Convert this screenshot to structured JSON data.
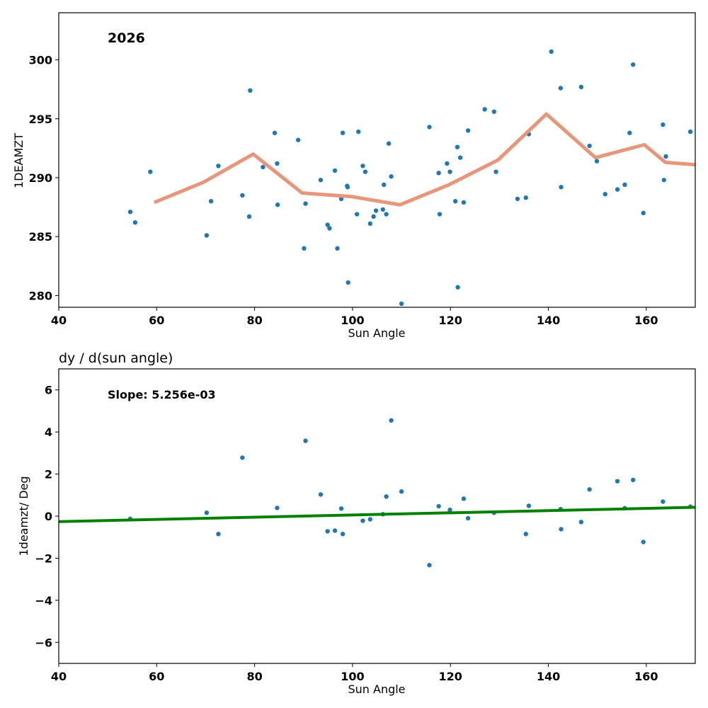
{
  "chart_data": [
    {
      "type": "scatter",
      "title": "",
      "annotation": "2026",
      "xlabel": "Sun Angle",
      "ylabel": "1DEAMZT",
      "xlim": [
        40,
        170
      ],
      "ylim": [
        279,
        304
      ],
      "xticks": [
        40,
        60,
        80,
        100,
        120,
        140,
        160
      ],
      "yticks": [
        280,
        285,
        290,
        295,
        300
      ],
      "grid": false,
      "colors": {
        "points": "#1f77b4",
        "line": "#e8967a"
      },
      "series": [
        {
          "name": "points",
          "kind": "scatter",
          "points": [
            [
              54.6,
              287.1
            ],
            [
              55.6,
              286.2
            ],
            [
              58.7,
              290.5
            ],
            [
              70.2,
              285.1
            ],
            [
              71.1,
              288.0
            ],
            [
              72.6,
              291.0
            ],
            [
              77.5,
              288.5
            ],
            [
              78.9,
              286.7
            ],
            [
              79.1,
              297.4
            ],
            [
              81.7,
              290.9
            ],
            [
              84.1,
              293.8
            ],
            [
              84.6,
              291.2
            ],
            [
              84.7,
              287.7
            ],
            [
              88.9,
              293.2
            ],
            [
              90.1,
              284.0
            ],
            [
              90.4,
              287.8
            ],
            [
              93.5,
              289.8
            ],
            [
              94.9,
              286.0
            ],
            [
              95.3,
              285.7
            ],
            [
              96.4,
              290.6
            ],
            [
              96.9,
              284.0
            ],
            [
              97.7,
              288.2
            ],
            [
              98.0,
              293.8
            ],
            [
              98.9,
              289.3
            ],
            [
              99.1,
              281.1
            ],
            [
              99.0,
              289.2
            ],
            [
              100.9,
              286.9
            ],
            [
              101.2,
              293.9
            ],
            [
              102.1,
              291.0
            ],
            [
              102.6,
              290.5
            ],
            [
              103.6,
              286.1
            ],
            [
              104.3,
              286.7
            ],
            [
              104.8,
              287.2
            ],
            [
              106.2,
              287.3
            ],
            [
              106.4,
              289.4
            ],
            [
              106.9,
              286.9
            ],
            [
              107.4,
              292.9
            ],
            [
              107.9,
              290.1
            ],
            [
              110.0,
              279.3
            ],
            [
              115.7,
              294.3
            ],
            [
              117.6,
              290.4
            ],
            [
              117.8,
              286.9
            ],
            [
              119.3,
              291.2
            ],
            [
              119.9,
              290.5
            ],
            [
              121.0,
              288.0
            ],
            [
              121.4,
              292.6
            ],
            [
              121.5,
              280.7
            ],
            [
              122.0,
              291.7
            ],
            [
              122.7,
              287.9
            ],
            [
              123.6,
              294.0
            ],
            [
              127.0,
              295.8
            ],
            [
              128.9,
              295.6
            ],
            [
              129.3,
              290.5
            ],
            [
              133.7,
              288.2
            ],
            [
              135.4,
              288.3
            ],
            [
              136.0,
              293.7
            ],
            [
              140.6,
              300.7
            ],
            [
              142.5,
              297.6
            ],
            [
              142.6,
              289.2
            ],
            [
              146.7,
              297.7
            ],
            [
              148.4,
              292.7
            ],
            [
              149.9,
              291.4
            ],
            [
              151.6,
              288.6
            ],
            [
              154.1,
              289.0
            ],
            [
              155.6,
              289.4
            ],
            [
              156.6,
              293.8
            ],
            [
              157.3,
              299.6
            ],
            [
              159.4,
              287.0
            ],
            [
              163.4,
              294.5
            ],
            [
              163.6,
              289.8
            ],
            [
              164.0,
              291.8
            ],
            [
              169.0,
              293.9
            ]
          ]
        },
        {
          "name": "binned mean",
          "kind": "line",
          "x": [
            59.5,
            69.5,
            79.7,
            89.7,
            99.7,
            109.7,
            119.7,
            129.7,
            139.6,
            149.6,
            159.6,
            163.9,
            170
          ],
          "y": [
            287.9,
            289.6,
            292.0,
            288.7,
            288.4,
            287.7,
            289.4,
            291.5,
            295.4,
            291.7,
            292.8,
            291.3,
            291.1
          ]
        }
      ]
    },
    {
      "type": "scatter",
      "title": "dy / d(sun angle)",
      "annotation": "Slope: 5.256e-03",
      "xlabel": "Sun Angle",
      "ylabel": "1deamzt/ Deg",
      "xlim": [
        40,
        170
      ],
      "ylim": [
        -7,
        7
      ],
      "xticks": [
        40,
        60,
        80,
        100,
        120,
        140,
        160
      ],
      "yticks": [
        -6,
        -4,
        -2,
        0,
        2,
        4,
        6
      ],
      "grid": false,
      "colors": {
        "points": "#1f77b4",
        "line": "#008000"
      },
      "series": [
        {
          "name": "derivative points",
          "kind": "scatter",
          "points": [
            [
              54.6,
              -0.13
            ],
            [
              70.2,
              0.16
            ],
            [
              72.6,
              -0.85
            ],
            [
              77.5,
              2.78
            ],
            [
              84.6,
              0.39
            ],
            [
              90.4,
              3.58
            ],
            [
              93.5,
              1.03
            ],
            [
              94.9,
              -0.72
            ],
            [
              96.4,
              -0.69
            ],
            [
              97.7,
              0.36
            ],
            [
              98.0,
              -0.85
            ],
            [
              102.1,
              -0.22
            ],
            [
              103.6,
              -0.15
            ],
            [
              106.2,
              0.09
            ],
            [
              106.9,
              0.93
            ],
            [
              107.9,
              4.55
            ],
            [
              110.0,
              1.17
            ],
            [
              115.7,
              -2.33
            ],
            [
              117.6,
              0.47
            ],
            [
              119.9,
              0.3
            ],
            [
              122.7,
              0.83
            ],
            [
              123.6,
              -0.1
            ],
            [
              128.9,
              0.16
            ],
            [
              135.4,
              -0.85
            ],
            [
              136.0,
              0.49
            ],
            [
              142.5,
              0.33
            ],
            [
              142.6,
              -0.62
            ],
            [
              146.7,
              -0.28
            ],
            [
              148.4,
              1.27
            ],
            [
              154.1,
              1.66
            ],
            [
              155.6,
              0.38
            ],
            [
              157.3,
              1.72
            ],
            [
              159.4,
              -1.23
            ],
            [
              163.4,
              0.69
            ],
            [
              169.0,
              0.45
            ]
          ]
        },
        {
          "name": "linear fit",
          "kind": "line",
          "x": [
            40,
            170
          ],
          "y": [
            -0.26,
            0.42
          ]
        }
      ]
    }
  ]
}
